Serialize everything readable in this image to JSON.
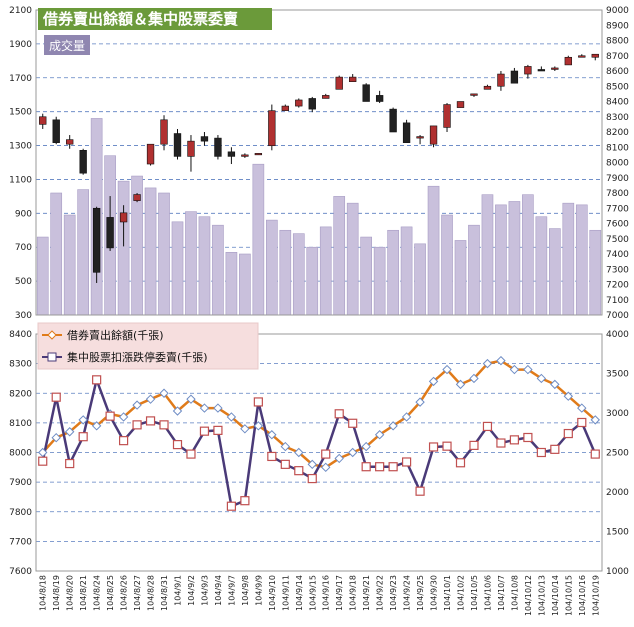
{
  "chart_data": [
    {
      "type": "candlestick+bar",
      "title": "借券賣出餘額＆集中股票委賣",
      "volume_label": "成交量",
      "y_left_ticks": [
        "300",
        "500",
        "700",
        "900",
        "1100",
        "1300",
        "1500",
        "1700",
        "1900",
        "2100"
      ],
      "y_right_ticks": [
        "7000",
        "7100",
        "7200",
        "7300",
        "7400",
        "7500",
        "7600",
        "7700",
        "7800",
        "7900",
        "8000",
        "8100",
        "8200",
        "8300",
        "8400",
        "8500",
        "8600",
        "8700",
        "8800",
        "8900",
        "9000"
      ],
      "ylim_left": [
        300,
        2100
      ],
      "ylim_right": [
        7000,
        9000
      ],
      "grid": true,
      "colors": {
        "up": "#b03030",
        "down": "#222222",
        "volume": "#c9c0dc",
        "grid": "#5b7fc0",
        "title_bg": "#6b9a3a",
        "vol_label_bg": "#8f86b0"
      },
      "volume": [
        760,
        1020,
        890,
        1040,
        1460,
        1240,
        1090,
        1120,
        1050,
        1020,
        850,
        910,
        880,
        830,
        670,
        660,
        1190,
        860,
        800,
        780,
        700,
        820,
        1000,
        960,
        760,
        700,
        800,
        820,
        720,
        1060,
        890,
        740,
        830,
        1010,
        950,
        970,
        1010,
        880,
        810,
        960,
        950,
        800
      ],
      "ohlc": [
        [
          8250,
          8320,
          8220,
          8300
        ],
        [
          8280,
          8300,
          8120,
          8130
        ],
        [
          8120,
          8180,
          8090,
          8150
        ],
        [
          8080,
          8090,
          7920,
          7930
        ],
        [
          7700,
          7710,
          7210,
          7280
        ],
        [
          7640,
          7780,
          7420,
          7440
        ],
        [
          7610,
          7720,
          7450,
          7670
        ],
        [
          7750,
          7800,
          7740,
          7790
        ],
        [
          7990,
          8120,
          7980,
          8120
        ],
        [
          8120,
          8310,
          8080,
          8280
        ],
        [
          8190,
          8220,
          8020,
          8040
        ],
        [
          8040,
          8180,
          7940,
          8140
        ],
        [
          8170,
          8200,
          8110,
          8140
        ],
        [
          8160,
          8180,
          8020,
          8040
        ],
        [
          8070,
          8100,
          7990,
          8040
        ],
        [
          8040,
          8060,
          8030,
          8050
        ],
        [
          8060,
          8060,
          8050,
          8060
        ],
        [
          8110,
          8380,
          8080,
          8340
        ],
        [
          8340,
          8380,
          8340,
          8370
        ],
        [
          8370,
          8420,
          8360,
          8410
        ],
        [
          8420,
          8430,
          8330,
          8350
        ],
        [
          8420,
          8450,
          8420,
          8440
        ],
        [
          8480,
          8570,
          8480,
          8560
        ],
        [
          8530,
          8580,
          8530,
          8560
        ],
        [
          8510,
          8520,
          8400,
          8400
        ],
        [
          8440,
          8470,
          8390,
          8400
        ],
        [
          8350,
          8360,
          8200,
          8200
        ],
        [
          8260,
          8280,
          8130,
          8130
        ],
        [
          8160,
          8180,
          8120,
          8170
        ],
        [
          8120,
          8240,
          8100,
          8240
        ],
        [
          8230,
          8390,
          8200,
          8380
        ],
        [
          8360,
          8400,
          8360,
          8400
        ],
        [
          8440,
          8450,
          8430,
          8450
        ],
        [
          8480,
          8510,
          8480,
          8500
        ],
        [
          8500,
          8600,
          8470,
          8580
        ],
        [
          8600,
          8620,
          8520,
          8520
        ],
        [
          8580,
          8640,
          8550,
          8630
        ],
        [
          8610,
          8630,
          8600,
          8600
        ],
        [
          8620,
          8630,
          8600,
          8620
        ],
        [
          8640,
          8700,
          8640,
          8690
        ],
        [
          8690,
          8710,
          8690,
          8700
        ],
        [
          8690,
          8710,
          8670,
          8710
        ]
      ]
    },
    {
      "type": "line",
      "x": [
        "104/8/18",
        "104/8/19",
        "104/8/20",
        "104/8/21",
        "104/8/24",
        "104/8/25",
        "104/8/26",
        "104/8/27",
        "104/8/28",
        "104/8/31",
        "104/9/1",
        "104/9/2",
        "104/9/3",
        "104/9/4",
        "104/9/7",
        "104/9/8",
        "104/9/9",
        "104/9/10",
        "104/9/11",
        "104/9/14",
        "104/9/15",
        "104/9/16",
        "104/9/17",
        "104/9/18",
        "104/9/21",
        "104/9/22",
        "104/9/23",
        "104/9/24",
        "104/9/25",
        "104/9/30",
        "104/10/1",
        "104/10/2",
        "104/10/5",
        "104/10/6",
        "104/10/7",
        "104/10/8",
        "104/10/12",
        "104/10/13",
        "104/10/14",
        "104/10/15",
        "104/10/16",
        "104/10/19"
      ],
      "x_ticks": [
        "104/8/18",
        "104/8/19",
        "104/8/20",
        "104/8/21",
        "104/8/24",
        "104/8/25",
        "104/8/26",
        "104/8/27",
        "104/8/28",
        "104/8/31",
        "104/9/1",
        "104/9/2",
        "104/9/3",
        "104/9/4",
        "104/9/7",
        "104/9/8",
        "104/9/9",
        "104/9/10",
        "104/9/11",
        "104/9/14",
        "104/9/15",
        "104/9/16",
        "104/9/17",
        "104/9/18",
        "104/9/21",
        "104/9/22",
        "104/9/23",
        "104/9/24",
        "104/9/25",
        "104/9/30",
        "104/10/1",
        "104/10/2",
        "104/10/5",
        "104/10/6",
        "104/10/7",
        "104/10/8",
        "104/10/12",
        "104/10/13",
        "104/10/14",
        "104/10/15",
        "104/10/16",
        "104/10/19"
      ],
      "y_left_ticks": [
        "7600",
        "7700",
        "7800",
        "7900",
        "8000",
        "8100",
        "8200",
        "8300",
        "8400"
      ],
      "y_right_ticks": [
        "1000",
        "1500",
        "2000",
        "2500",
        "3000",
        "3500",
        "4000"
      ],
      "ylim_left": [
        7600,
        8400
      ],
      "ylim_right": [
        1000,
        4000
      ],
      "grid": true,
      "series": [
        {
          "name": "借券賣出餘額(千張)",
          "axis": "left",
          "color": "#e07b1a",
          "marker": "diamond",
          "values": [
            8000,
            8050,
            8070,
            8110,
            8090,
            8130,
            8120,
            8160,
            8180,
            8200,
            8140,
            8180,
            8150,
            8150,
            8120,
            8080,
            8090,
            8060,
            8020,
            8000,
            7960,
            7950,
            7980,
            8000,
            8020,
            8060,
            8090,
            8120,
            8170,
            8240,
            8280,
            8230,
            8250,
            8300,
            8310,
            8280,
            8280,
            8250,
            8230,
            8190,
            8150,
            8110
          ]
        },
        {
          "name": "集中股票扣漲跌停委賣(千張)",
          "axis": "right",
          "color": "#4a3a78",
          "marker": "square",
          "values": [
            2390,
            3200,
            2360,
            2700,
            3420,
            2960,
            2650,
            2850,
            2900,
            2850,
            2600,
            2480,
            2770,
            2780,
            1820,
            1890,
            3140,
            2450,
            2350,
            2270,
            2170,
            2480,
            2990,
            2870,
            2320,
            2320,
            2320,
            2380,
            2010,
            2570,
            2580,
            2370,
            2590,
            2830,
            2620,
            2660,
            2690,
            2500,
            2540,
            2740,
            2880,
            2480
          ]
        }
      ]
    }
  ]
}
